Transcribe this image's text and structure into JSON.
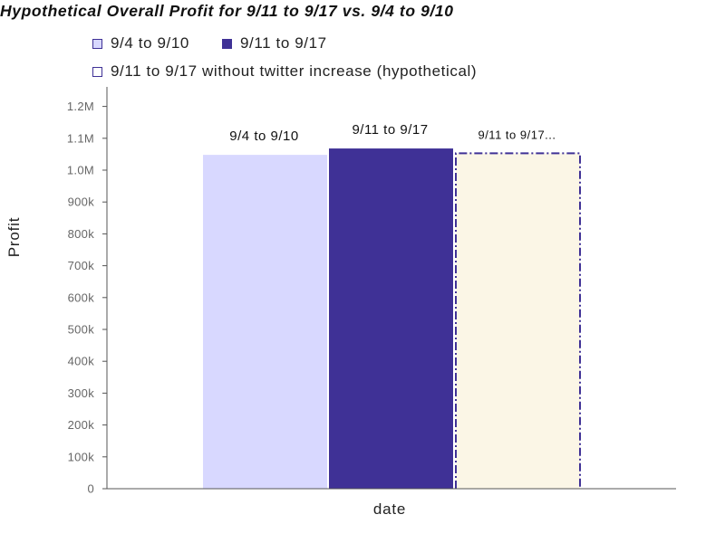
{
  "chart_data": {
    "type": "bar",
    "title": "Hypothetical Overall Profit for 9/11 to 9/17 vs. 9/4 to 9/10",
    "xlabel": "date",
    "ylabel": "Profit",
    "ylim": [
      0,
      1250000
    ],
    "yticks": [
      0,
      100000,
      200000,
      300000,
      400000,
      500000,
      600000,
      700000,
      800000,
      900000,
      1000000,
      1100000,
      1200000
    ],
    "ytick_labels": [
      "0",
      "100k",
      "200k",
      "300k",
      "400k",
      "500k",
      "600k",
      "700k",
      "800k",
      "900k",
      "1.0M",
      "1.1M",
      "1.2M"
    ],
    "grid": false,
    "legend_position": "top",
    "series": [
      {
        "name": "9/4 to 9/10",
        "value": 1048000,
        "bar_label": "9/4 to 9/10",
        "fill": "#d8d8ff",
        "stroke": "#d8d8ff",
        "dashed": false
      },
      {
        "name": "9/11 to 9/17",
        "value": 1068000,
        "bar_label": "9/11 to 9/17",
        "fill": "#3f3196",
        "stroke": "#3f3196",
        "dashed": false
      },
      {
        "name": "9/11 to 9/17 without twitter increase (hypothetical)",
        "value": 1053000,
        "bar_label": "9/11 to 9/17...",
        "fill": "#fbf6e6",
        "stroke": "#3f3196",
        "dashed": true
      }
    ]
  }
}
